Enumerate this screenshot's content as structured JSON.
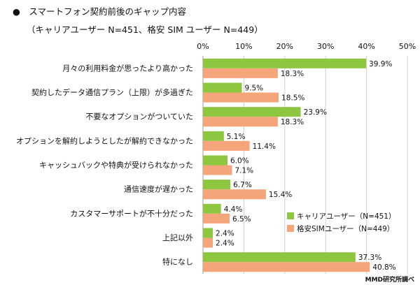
{
  "title_line1": "●　スマートフォン契約前後のギャップ内容",
  "title_line2": "（キャリアユーザー N=451、格安 SIM ユーザー N=449）",
  "credit": "MMD研究所調べ",
  "chart_data": {
    "type": "bar",
    "orientation": "horizontal",
    "title": "スマートフォン契約前後のギャップ内容",
    "subtitle": "（キャリアユーザー N=451、格安 SIM ユーザー N=449）",
    "xlim": [
      0,
      50
    ],
    "ticks": [
      "0%",
      "10%",
      "20%",
      "30%",
      "40%",
      "50%"
    ],
    "tick_values": [
      0,
      10,
      20,
      30,
      40,
      50
    ],
    "grid": true,
    "legend_position": "bottom-right",
    "categories": [
      "月々の利用料金が思ったより高かった",
      "契約したデータ通信プラン（上限）が多過ぎた",
      "不要なオプションがついていた",
      "オプションを解約しようとしたが解約できなかった",
      "キャッシュバックや特典が受けられなかった",
      "通信速度が遅かった",
      "カスタマーサポートが不十分だった",
      "上記以外",
      "特になし"
    ],
    "series": [
      {
        "name": "キャリアユーザー（N=451）",
        "color": "#8dc63f",
        "values": [
          39.9,
          9.5,
          23.9,
          5.1,
          6.0,
          6.7,
          4.4,
          2.4,
          37.3
        ],
        "labels": [
          "39.9%",
          "9.5%",
          "23.9%",
          "5.1%",
          "6.0%",
          "6.7%",
          "4.4%",
          "2.4%",
          "37.3%"
        ]
      },
      {
        "name": "格安SIMユーザー（N=449）",
        "color": "#f4a67a",
        "values": [
          18.3,
          18.5,
          18.3,
          11.4,
          7.1,
          15.4,
          6.5,
          2.4,
          40.8
        ],
        "labels": [
          "18.3%",
          "18.5%",
          "18.3%",
          "11.4%",
          "7.1%",
          "15.4%",
          "6.5%",
          "2.4%",
          "40.8%"
        ]
      }
    ]
  }
}
